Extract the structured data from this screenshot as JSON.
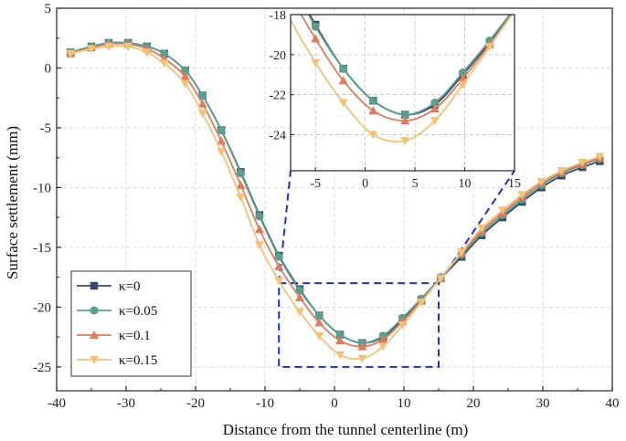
{
  "chart_data": {
    "type": "line",
    "title": "",
    "xlabel": "Distance from the tunnel centerline (m)",
    "ylabel": "Surface settlement (mm)",
    "xlim": [
      -40,
      40
    ],
    "ylim": [
      -27,
      5
    ],
    "xticks": [
      -40,
      -30,
      -20,
      -10,
      0,
      10,
      20,
      30,
      40
    ],
    "yticks": [
      5,
      0,
      -5,
      -10,
      -15,
      -20,
      -25
    ],
    "xtick_labels": [
      "-40",
      "-30",
      "-20",
      "-10",
      "0",
      "10",
      "20",
      "30",
      "40"
    ],
    "ytick_labels": [
      "5",
      "0",
      "-5",
      "-10",
      "-15",
      "-20",
      "-25"
    ],
    "legend_position": "lower-left",
    "x": [
      -38,
      -35,
      -32.5,
      -29.7,
      -27,
      -24.5,
      -21.5,
      -19,
      -16.3,
      -13.5,
      -10.8,
      -8,
      -5,
      -2.2,
      0.8,
      4,
      7,
      9.8,
      12.5,
      15.3,
      18.3,
      21.2,
      24.2,
      27,
      29.8,
      32.7,
      35.7,
      38.2
    ],
    "series": [
      {
        "name": "κ=0",
        "legend_label": "κ=0",
        "color": "#3b4766",
        "marker": "square",
        "values": [
          1.3,
          1.8,
          2.1,
          2.1,
          1.8,
          1.2,
          -0.2,
          -2.3,
          -5.2,
          -8.7,
          -12.3,
          -15.7,
          -18.5,
          -20.7,
          -22.3,
          -23.0,
          -22.5,
          -21.0,
          -19.4,
          -17.6,
          -15.8,
          -14.0,
          -12.5,
          -11.2,
          -10.0,
          -9.0,
          -8.3,
          -7.8
        ]
      },
      {
        "name": "κ=0.05",
        "legend_label": "κ=0.05",
        "color": "#5a9e90",
        "marker": "circle",
        "values": [
          1.3,
          1.8,
          2.1,
          2.1,
          1.8,
          1.2,
          -0.2,
          -2.3,
          -5.2,
          -8.8,
          -12.4,
          -15.8,
          -18.6,
          -20.7,
          -22.3,
          -23.0,
          -22.4,
          -20.9,
          -19.3,
          -17.5,
          -15.6,
          -13.8,
          -12.3,
          -11.0,
          -9.8,
          -8.8,
          -8.1,
          -7.6
        ]
      },
      {
        "name": "κ=0.1",
        "legend_label": "κ=0.1",
        "color": "#e07a5f",
        "marker": "triangle-up",
        "values": [
          1.2,
          1.7,
          2.0,
          2.0,
          1.6,
          0.8,
          -0.7,
          -3.0,
          -6.1,
          -9.8,
          -13.5,
          -16.6,
          -19.2,
          -21.3,
          -22.8,
          -23.3,
          -22.7,
          -21.2,
          -19.5,
          -17.6,
          -15.5,
          -13.6,
          -12.1,
          -10.8,
          -9.6,
          -8.7,
          -8.0,
          -7.5
        ]
      },
      {
        "name": "κ=0.15",
        "legend_label": "κ=0.15",
        "color": "#f2c277",
        "marker": "triangle-down",
        "values": [
          1.2,
          1.6,
          1.8,
          1.8,
          1.3,
          0.4,
          -1.3,
          -3.8,
          -7.0,
          -10.8,
          -14.8,
          -17.8,
          -20.4,
          -22.4,
          -24.0,
          -24.3,
          -23.3,
          -21.5,
          -19.6,
          -17.6,
          -15.4,
          -13.4,
          -11.9,
          -10.6,
          -9.5,
          -8.6,
          -7.9,
          -7.4
        ]
      }
    ],
    "inset": {
      "xlim": [
        -7.5,
        15
      ],
      "ylim": [
        -25.8,
        -18
      ],
      "xticks": [
        -5,
        0,
        5,
        10,
        15
      ],
      "yticks": [
        -18,
        -20,
        -22,
        -24
      ],
      "xtick_labels": [
        "-5",
        "0",
        "5",
        "10",
        "15"
      ],
      "ytick_labels": [
        "-18",
        "-20",
        "-22",
        "-24"
      ],
      "zoom_region": {
        "x": [
          -8,
          15
        ],
        "y": [
          -25,
          -18
        ]
      }
    }
  }
}
